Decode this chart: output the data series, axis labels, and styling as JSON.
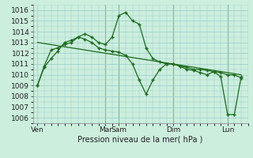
{
  "background_color": "#cceedd",
  "grid_color": "#99cccc",
  "line_color": "#1a6b1a",
  "ylabel": "Pression niveau de la mer( hPa )",
  "ylim": [
    1005.5,
    1016.5
  ],
  "yticks": [
    1006,
    1007,
    1008,
    1009,
    1010,
    1011,
    1012,
    1013,
    1014,
    1015,
    1016
  ],
  "day_labels": [
    "Ven",
    "Mar",
    "Sam",
    "Dim",
    "Lun"
  ],
  "day_positions": [
    0,
    60,
    72,
    120,
    168
  ],
  "xlim": [
    -4,
    186
  ],
  "vline_positions": [
    60,
    72,
    120,
    168
  ],
  "series1_x": [
    0,
    6,
    12,
    18,
    24,
    30,
    36,
    42,
    48,
    54,
    60,
    66,
    72,
    78,
    84,
    90,
    96,
    102,
    108,
    114,
    120,
    126,
    132,
    138,
    144,
    150,
    156,
    162,
    168,
    174,
    180
  ],
  "series1_y": [
    1009.0,
    1010.7,
    1011.5,
    1012.2,
    1013.0,
    1013.2,
    1013.5,
    1013.8,
    1013.5,
    1013.0,
    1012.8,
    1013.5,
    1015.5,
    1015.8,
    1015.0,
    1014.7,
    1012.5,
    1011.5,
    1011.2,
    1011.0,
    1011.0,
    1010.8,
    1010.7,
    1010.5,
    1010.5,
    1010.4,
    1010.3,
    1010.2,
    1010.0,
    1010.0,
    1009.7
  ],
  "series2_x": [
    0,
    6,
    12,
    18,
    24,
    30,
    36,
    42,
    48,
    54,
    60,
    66,
    72,
    78,
    84,
    90,
    96,
    102,
    108,
    114,
    120,
    126,
    132,
    138,
    144,
    150,
    156,
    162,
    168,
    174,
    180
  ],
  "series2_y": [
    1009.0,
    1010.8,
    1012.3,
    1012.5,
    1012.8,
    1013.0,
    1013.5,
    1013.3,
    1013.0,
    1012.5,
    1012.3,
    1012.2,
    1012.1,
    1011.8,
    1011.0,
    1009.5,
    1008.2,
    1009.5,
    1010.5,
    1011.0,
    1011.0,
    1010.8,
    1010.5,
    1010.4,
    1010.2,
    1010.0,
    1010.3,
    1009.8,
    1006.3,
    1006.3,
    1009.8
  ],
  "trend_x": [
    0,
    180
  ],
  "trend_y": [
    1013.0,
    1010.0
  ]
}
